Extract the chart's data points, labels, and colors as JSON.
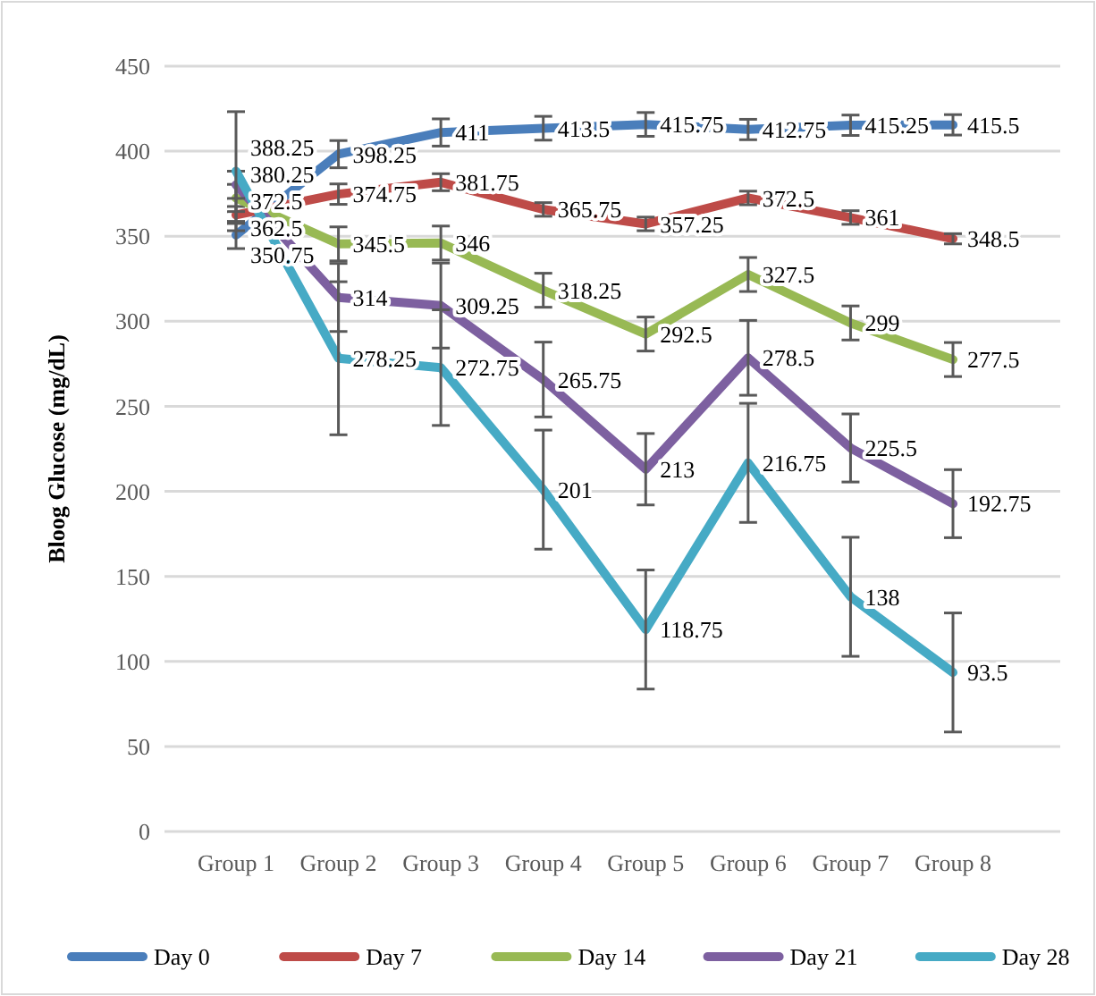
{
  "chart_data": {
    "type": "line",
    "ylabel": "Bloog Glucose (mg/dL)",
    "categories": [
      "Group 1",
      "Group 2",
      "Group 3",
      "Group 4",
      "Group 5",
      "Group 6",
      "Group 7",
      "Group 8"
    ],
    "series": [
      {
        "name": "Day 0",
        "color": "#4a7ebb",
        "values": [
          350.75,
          398.25,
          411,
          413.5,
          415.75,
          412.75,
          415.25,
          415.5
        ],
        "errors": [
          8,
          8,
          8,
          7,
          7,
          6,
          6,
          6
        ]
      },
      {
        "name": "Day 7",
        "color": "#be4b48",
        "values": [
          362.5,
          374.75,
          381.75,
          365.75,
          357.25,
          372.5,
          361,
          348.5
        ],
        "errors": [
          5,
          6,
          5,
          4,
          4,
          4,
          4,
          3
        ]
      },
      {
        "name": "Day 14",
        "color": "#98b954",
        "values": [
          372.5,
          345.5,
          346,
          318.25,
          292.5,
          327.5,
          299,
          277.5
        ],
        "errors": [
          8,
          10,
          10,
          10,
          10,
          10,
          10,
          10
        ]
      },
      {
        "name": "Day 21",
        "color": "#7d60a0",
        "values": [
          380.25,
          314,
          309.25,
          265.75,
          213,
          278.5,
          225.5,
          192.75
        ],
        "errors": [
          8,
          20,
          25,
          22,
          21,
          22,
          20,
          20
        ]
      },
      {
        "name": "Day 28",
        "color": "#46aac5",
        "values": [
          388.25,
          278.25,
          272.75,
          201,
          118.75,
          216.75,
          138,
          93.5
        ],
        "errors": [
          35,
          45,
          34,
          35,
          35,
          35,
          35,
          35
        ]
      }
    ],
    "ylim": [
      0,
      450
    ],
    "yticks": [
      0,
      50,
      100,
      150,
      200,
      250,
      300,
      350,
      400,
      450
    ],
    "grid": "y",
    "legend": "bottom",
    "data_labels": true,
    "marker": "none",
    "line_style": "solid"
  }
}
